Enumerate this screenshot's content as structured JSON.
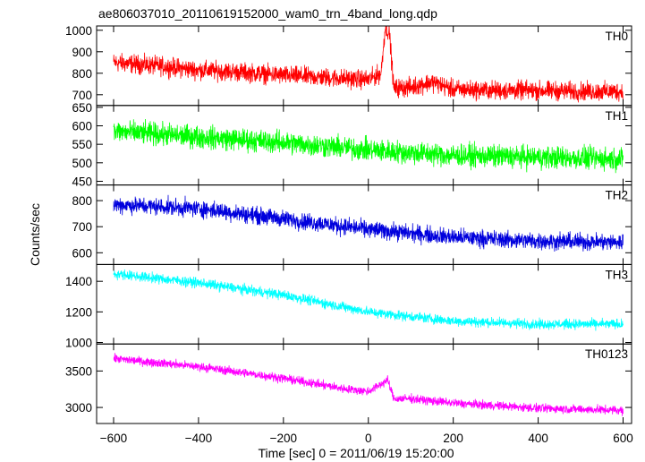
{
  "chart_data": {
    "type": "line",
    "title": "ae806037010_20110619152000_wam0_trn_4band_long.qdp",
    "xlabel": "Time [sec] 0 = 2011/06/19 15:20:00",
    "ylabel": "Counts/sec",
    "xlim": [
      -640,
      620
    ],
    "xticks": [
      -600,
      -400,
      -200,
      0,
      200,
      400,
      600
    ],
    "grid": false,
    "panels": [
      {
        "name": "TH0",
        "color": "#ff0000",
        "ylim": [
          650,
          1020
        ],
        "yticks": [
          700,
          800,
          900,
          1000
        ],
        "series": {
          "x": [
            -600,
            -500,
            -400,
            -300,
            -200,
            -100,
            0,
            30,
            40,
            50,
            60,
            100,
            150,
            200,
            300,
            400,
            500,
            600
          ],
          "y": [
            850,
            835,
            815,
            805,
            790,
            780,
            770,
            800,
            1020,
            980,
            730,
            735,
            760,
            725,
            720,
            720,
            715,
            715
          ]
        },
        "noise": 40
      },
      {
        "name": "TH1",
        "color": "#00ff00",
        "ylim": [
          440,
          655
        ],
        "yticks": [
          450,
          500,
          550,
          600,
          650
        ],
        "series": {
          "x": [
            -600,
            -400,
            -200,
            0,
            200,
            400,
            600
          ],
          "y": [
            585,
            570,
            555,
            535,
            520,
            515,
            510
          ]
        },
        "noise": 28
      },
      {
        "name": "TH2",
        "color": "#0000dd",
        "ylim": [
          555,
          860
        ],
        "yticks": [
          600,
          700,
          800
        ],
        "series": {
          "x": [
            -600,
            -400,
            -200,
            0,
            200,
            400,
            600
          ],
          "y": [
            785,
            770,
            730,
            690,
            660,
            645,
            640
          ]
        },
        "noise": 30
      },
      {
        "name": "TH3",
        "color": "#00ffff",
        "ylim": [
          990,
          1510
        ],
        "yticks": [
          1000,
          1200,
          1400
        ],
        "series": {
          "x": [
            -600,
            -400,
            -200,
            0,
            200,
            400,
            600
          ],
          "y": [
            1450,
            1390,
            1310,
            1200,
            1140,
            1120,
            1120
          ]
        },
        "noise": 30
      },
      {
        "name": "TH0123",
        "color": "#ff00ff",
        "ylim": [
          2780,
          3870
        ],
        "yticks": [
          3000,
          3500
        ],
        "series": {
          "x": [
            -600,
            -400,
            -200,
            -50,
            0,
            30,
            45,
            60,
            100,
            200,
            400,
            600
          ],
          "y": [
            3670,
            3560,
            3400,
            3250,
            3220,
            3320,
            3380,
            3120,
            3120,
            3060,
            2990,
            2960
          ]
        },
        "noise": 55
      }
    ]
  }
}
